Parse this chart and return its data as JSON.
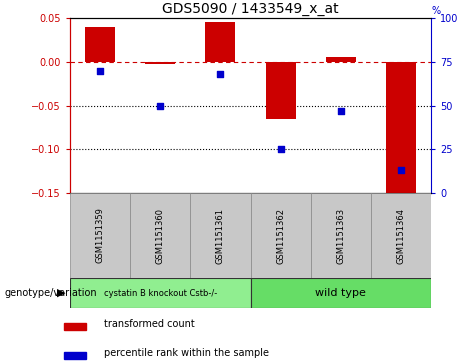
{
  "title": "GDS5090 / 1433549_x_at",
  "samples": [
    "GSM1151359",
    "GSM1151360",
    "GSM1151361",
    "GSM1151362",
    "GSM1151363",
    "GSM1151364"
  ],
  "transformed_count": [
    0.04,
    -0.003,
    0.045,
    -0.065,
    0.005,
    -0.152
  ],
  "percentile_rank": [
    70,
    50,
    68,
    25,
    47,
    13
  ],
  "ylim_left": [
    -0.15,
    0.05
  ],
  "ylim_right": [
    0,
    100
  ],
  "yticks_left": [
    0.05,
    0.0,
    -0.05,
    -0.1,
    -0.15
  ],
  "yticks_right": [
    100,
    75,
    50,
    25,
    0
  ],
  "group_labels": [
    "cystatin B knockout Cstb-/-",
    "wild type"
  ],
  "group_colors": [
    "#90ee90",
    "#66dd66"
  ],
  "bar_color": "#cc0000",
  "dot_color": "#0000cc",
  "bar_width": 0.5,
  "hline_y": 0.0,
  "dotted_lines": [
    -0.05,
    -0.1
  ],
  "legend_items": [
    "transformed count",
    "percentile rank within the sample"
  ],
  "genotype_label": "genotype/variation",
  "background_color": "#ffffff",
  "plot_bg_color": "#ffffff",
  "gray_box_color": "#c8c8c8",
  "gray_box_edge": "#888888"
}
